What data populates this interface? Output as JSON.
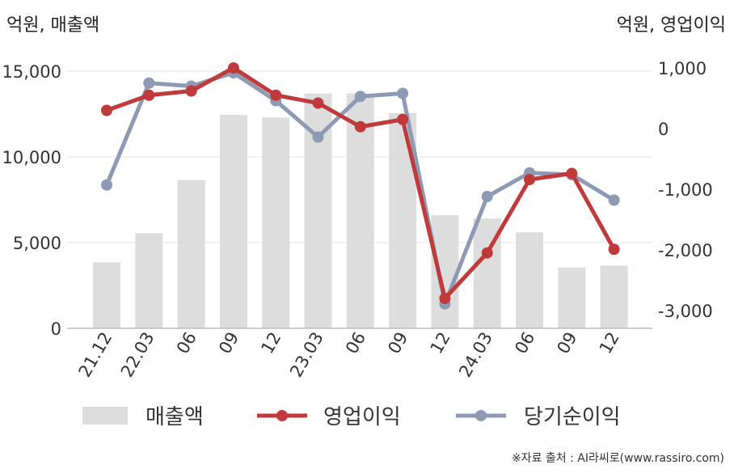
{
  "chart_data": {
    "type": "bar+line",
    "left_unit_label": "억원, 매출액",
    "right_unit_label": "억원, 영업이익",
    "categories": [
      "21.12",
      "22.03",
      "06",
      "09",
      "12",
      "23.03",
      "06",
      "09",
      "12",
      "24.03",
      "06",
      "09",
      "12"
    ],
    "left_axis": {
      "ticks": [
        "0",
        "5,000",
        "10,000",
        "15,000"
      ],
      "tick_values": [
        0,
        5000,
        10000,
        15000
      ],
      "ylim": [
        0,
        16000
      ]
    },
    "right_axis": {
      "ticks": [
        "1,000",
        "0",
        "-1,000",
        "-2,000",
        "-3,000"
      ],
      "tick_values": [
        1000,
        0,
        -1000,
        -2000,
        -3000
      ],
      "ylim": [
        -3250,
        1000
      ]
    },
    "bars": {
      "name": "매출액",
      "color": "#dddddd",
      "values": [
        3850,
        5550,
        8650,
        12450,
        12300,
        13700,
        13700,
        12550,
        6600,
        6400,
        5600,
        3550,
        3650
      ]
    },
    "lines": [
      {
        "name": "영업이익",
        "color": "#c0393b",
        "values": [
          300,
          550,
          620,
          1000,
          550,
          420,
          30,
          150,
          -2800,
          -2050,
          -840,
          -740,
          -1990
        ]
      },
      {
        "name": "당기순이익",
        "color": "#8e9ab4",
        "values": [
          -930,
          750,
          700,
          920,
          460,
          -140,
          530,
          580,
          -2890,
          -1120,
          -730,
          -760,
          -1180
        ]
      }
    ],
    "legend": [
      "매출액",
      "영업이익",
      "당기순이익"
    ],
    "legend_placement": "bottom",
    "grid": true
  },
  "source_text": "※자료 출처 : AI라씨로(www.rassiro.com)"
}
